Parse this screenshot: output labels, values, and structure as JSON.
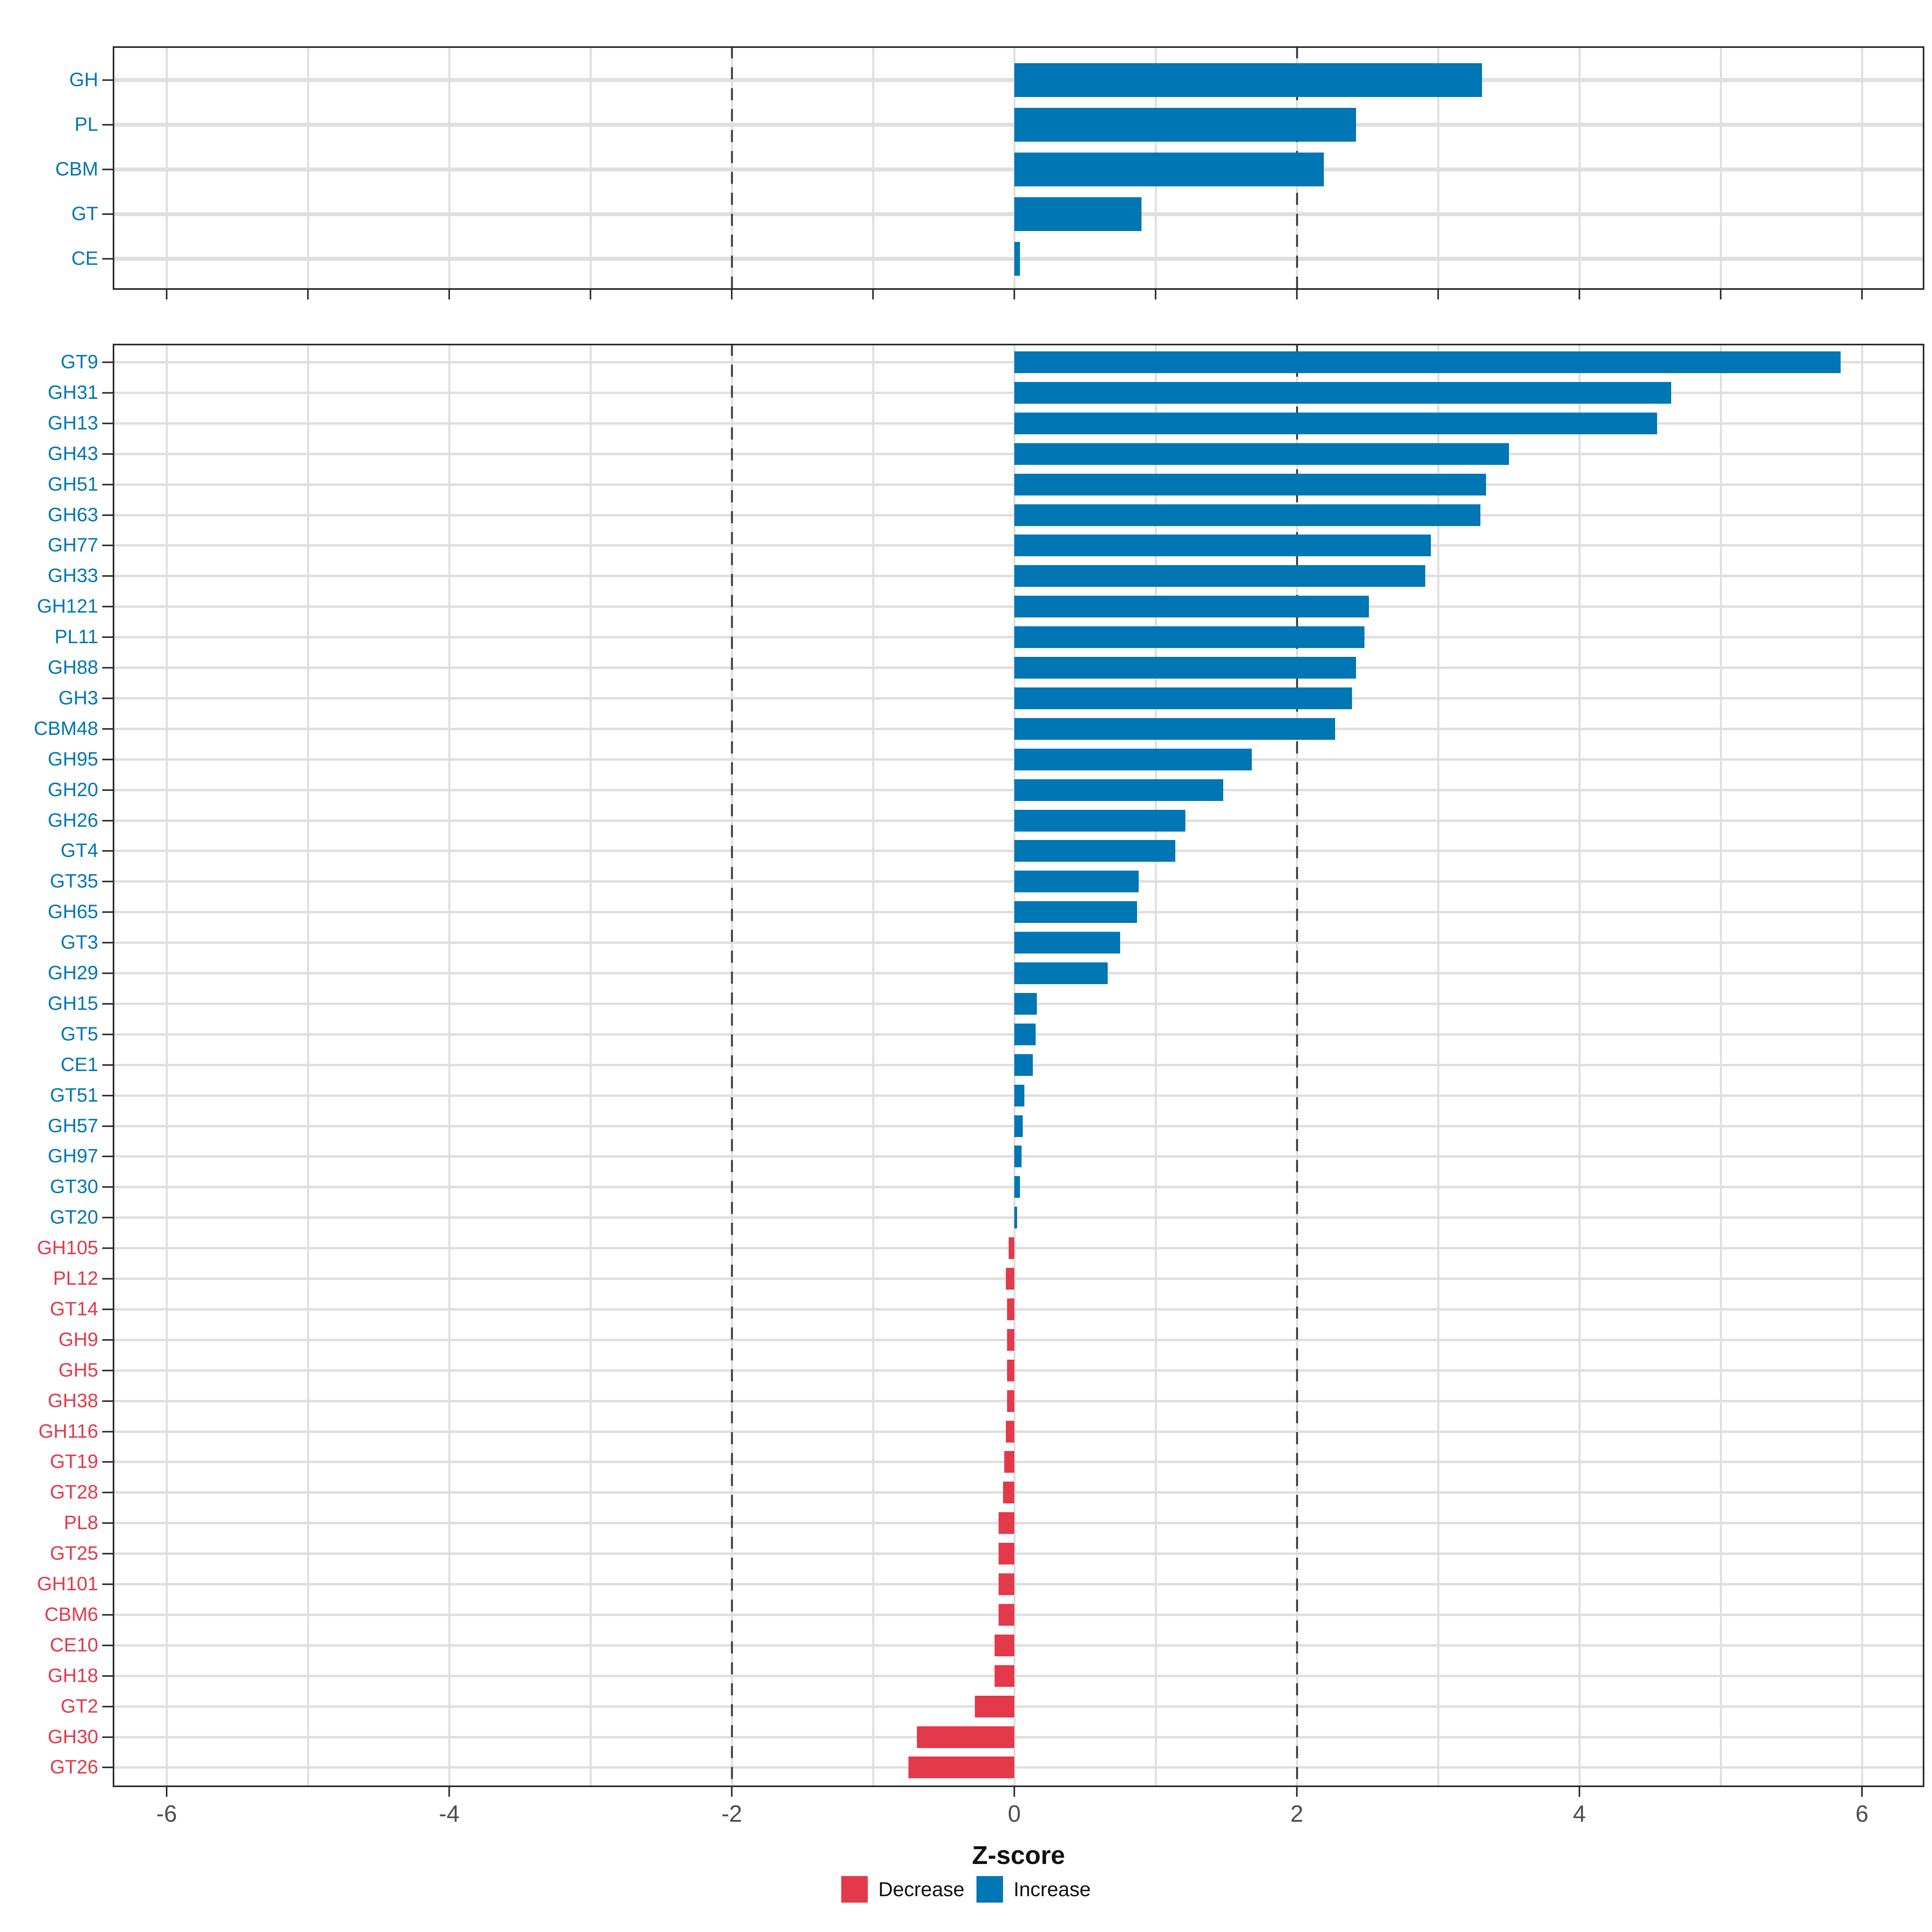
{
  "xlabel": "Z-score",
  "x_axis": {
    "tick_labels": [
      "-6",
      "-4",
      "-2",
      "0",
      "2",
      "4",
      "6"
    ],
    "tick_values": [
      -6,
      -4,
      -2,
      0,
      2,
      4,
      6
    ],
    "minor_tick_values": [
      -6,
      -5,
      -4,
      -3,
      -2,
      -1,
      0,
      1,
      2,
      3,
      4,
      5,
      6
    ],
    "range": [
      -6.4,
      6.4
    ],
    "dashed_guides": [
      -2,
      2
    ],
    "grid_values": [
      -6,
      -5,
      -4,
      -3,
      -2,
      -1,
      0,
      1,
      2,
      3,
      4,
      5,
      6
    ]
  },
  "legend": {
    "items": [
      {
        "label": "Decrease",
        "key": "decrease"
      },
      {
        "label": "Increase",
        "key": "increase"
      }
    ]
  },
  "colors": {
    "increase": "#0076b4",
    "decrease": "#e4394a",
    "grid": "#dfdfdf",
    "dashed_guide": "#454545",
    "panel_border": "#2a2a2a",
    "tick": "#333333",
    "tick_text": "#4d4d4d",
    "axis_title_text": "#111111"
  },
  "chart_data": [
    {
      "type": "bar",
      "panel": "top",
      "orientation": "horizontal",
      "title": "",
      "xlabel": "Z-score",
      "ylabel": "",
      "xlim": [
        -6.4,
        6.4
      ],
      "grid": true,
      "categories": [
        "GH",
        "PL",
        "CBM",
        "GT",
        "CE"
      ],
      "values": [
        3.31,
        2.42,
        2.19,
        0.9,
        0.04
      ],
      "groups": [
        "increase",
        "increase",
        "increase",
        "increase",
        "increase"
      ]
    },
    {
      "type": "bar",
      "panel": "bottom",
      "orientation": "horizontal",
      "title": "",
      "xlabel": "Z-score",
      "ylabel": "",
      "xlim": [
        -6.4,
        6.4
      ],
      "grid": true,
      "categories": [
        "GT9",
        "GH31",
        "GH13",
        "GH43",
        "GH51",
        "GH63",
        "GH77",
        "GH33",
        "GH121",
        "PL11",
        "GH88",
        "GH3",
        "CBM48",
        "GH95",
        "GH20",
        "GH26",
        "GT4",
        "GT35",
        "GH65",
        "GT3",
        "GH29",
        "GH15",
        "GT5",
        "CE1",
        "GT51",
        "GH57",
        "GH97",
        "GT30",
        "GT20",
        "GH105",
        "PL12",
        "GT14",
        "GH9",
        "GH5",
        "GH38",
        "GH116",
        "GT19",
        "GT28",
        "PL8",
        "GT25",
        "GH101",
        "CBM6",
        "CE10",
        "GH18",
        "GT2",
        "GH30",
        "GT26"
      ],
      "values": [
        5.85,
        4.65,
        4.55,
        3.5,
        3.34,
        3.3,
        2.95,
        2.91,
        2.51,
        2.48,
        2.42,
        2.39,
        2.27,
        1.68,
        1.48,
        1.21,
        1.14,
        0.88,
        0.87,
        0.75,
        0.66,
        0.16,
        0.15,
        0.13,
        0.07,
        0.06,
        0.05,
        0.04,
        0.02,
        -0.04,
        -0.06,
        -0.05,
        -0.05,
        -0.05,
        -0.05,
        -0.06,
        -0.07,
        -0.08,
        -0.11,
        -0.11,
        -0.11,
        -0.11,
        -0.14,
        -0.14,
        -0.28,
        -0.69,
        -0.75
      ],
      "groups": [
        "increase",
        "increase",
        "increase",
        "increase",
        "increase",
        "increase",
        "increase",
        "increase",
        "increase",
        "increase",
        "increase",
        "increase",
        "increase",
        "increase",
        "increase",
        "increase",
        "increase",
        "increase",
        "increase",
        "increase",
        "increase",
        "increase",
        "increase",
        "increase",
        "increase",
        "increase",
        "increase",
        "increase",
        "increase",
        "decrease",
        "decrease",
        "decrease",
        "decrease",
        "decrease",
        "decrease",
        "decrease",
        "decrease",
        "decrease",
        "decrease",
        "decrease",
        "decrease",
        "decrease",
        "decrease",
        "decrease",
        "decrease",
        "decrease",
        "decrease"
      ]
    }
  ]
}
